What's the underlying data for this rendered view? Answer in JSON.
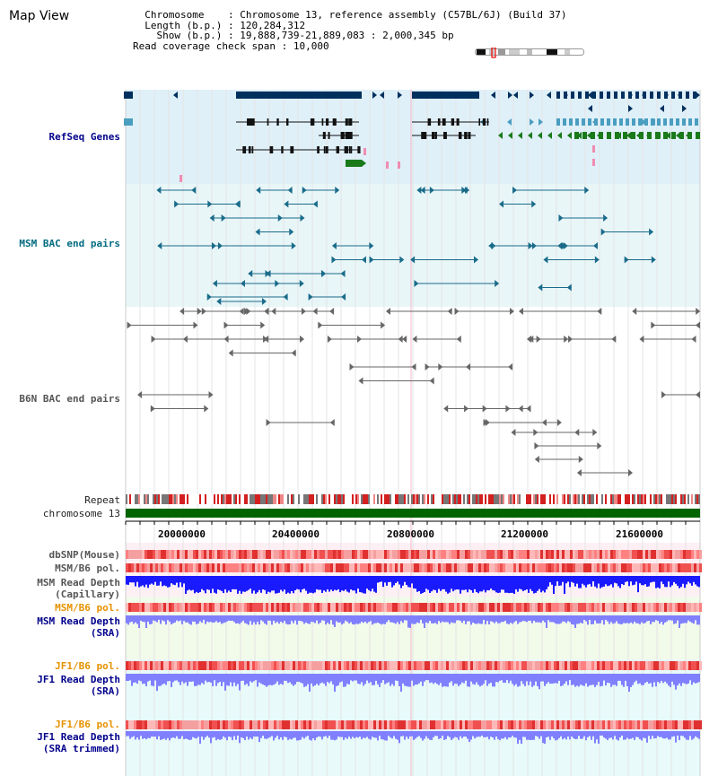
{
  "header": {
    "title": "Map View",
    "chromosome_key": "Chromosome",
    "chromosome_value": "Chromosome 13, reference assembly (C57BL/6J) (Build 37)",
    "length_key": "Length (b.p.)",
    "length_value": "120,284,312",
    "show_key": "Show (b.p.)",
    "show_value": "19,888,739-21,889,083 : 2,000,345 bp",
    "coverage_key": "Read coverage check span",
    "coverage_value": "10,000"
  },
  "tracks": {
    "refseq": "RefSeq Genes",
    "msm_bac": "MSM BAC end pairs",
    "b6n_bac": "B6N BAC end pairs",
    "repeat": "Repeat",
    "chromosome": "chromosome 13",
    "dbsnp": "dbSNP(Mouse)",
    "msm_b6_pol_1": "MSM/B6 pol.",
    "msm_depth_cap_1": "MSM Read Depth",
    "msm_depth_cap_2": "(Capillary)",
    "msm_b6_pol_2": "MSM/B6 pol.",
    "msm_depth_sra_1": "MSM Read Depth",
    "msm_depth_sra_2": "(SRA)",
    "jf1_b6_pol_1": "JF1/B6 pol.",
    "jf1_depth_sra_1": "JF1 Read Depth",
    "jf1_depth_sra_2": "(SRA)",
    "jf1_b6_pol_2": "JF1/B6 pol.",
    "jf1_depth_trim_1": "JF1 Read Depth",
    "jf1_depth_trim_2": "(SRA trimmed)"
  },
  "axis": {
    "ticks": [
      "20000000",
      "20400000",
      "20800000",
      "21200000",
      "21600000"
    ]
  },
  "colors": {
    "refseq_dark": "#00305e",
    "refseq_light": "#4a9ec0",
    "refseq_green": "#1a7a1a",
    "msm_line": "#1a6b8a",
    "b6n_line": "#666666",
    "chromosome": "#006400",
    "depth_blue": "#1a1aff",
    "depth_light": "#8080ff"
  }
}
